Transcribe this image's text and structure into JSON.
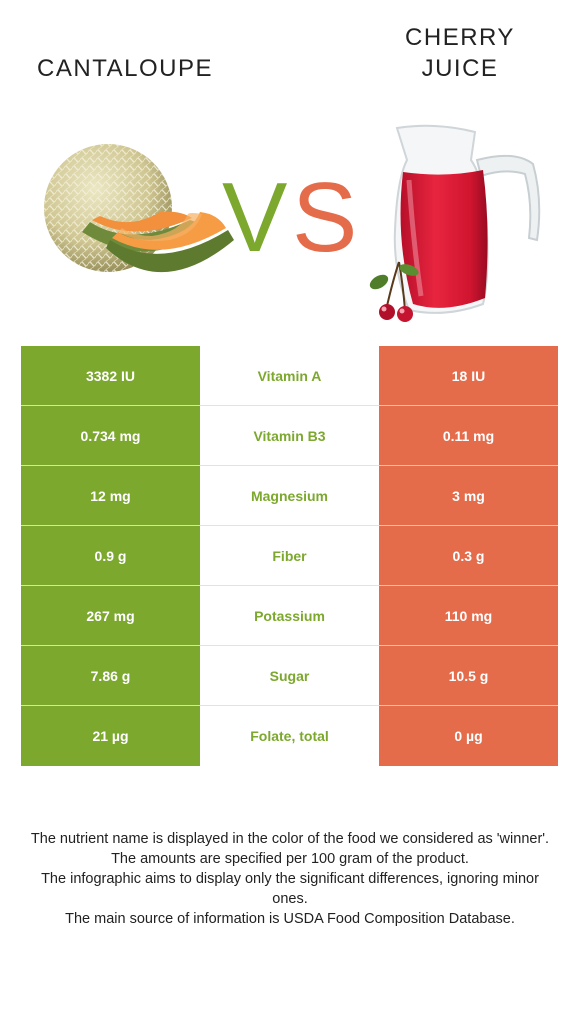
{
  "header": {
    "left_food": "CANTALOUPE",
    "right_food_line1": "CHERRY",
    "right_food_line2": "JUICE",
    "vs_v": "V",
    "vs_s": "S"
  },
  "colors": {
    "left_accent": "#7ca82e",
    "right_accent": "#e56c4b"
  },
  "images": {
    "left": "cantaloupe-image",
    "right": "cherry-juice-pitcher-image"
  },
  "rows": [
    {
      "left": "3382 IU",
      "nutrient": "Vitamin A",
      "right": "18 IU"
    },
    {
      "left": "0.734 mg",
      "nutrient": "Vitamin B3",
      "right": "0.11 mg"
    },
    {
      "left": "12 mg",
      "nutrient": "Magnesium",
      "right": "3 mg"
    },
    {
      "left": "0.9 g",
      "nutrient": "Fiber",
      "right": "0.3 g"
    },
    {
      "left": "267 mg",
      "nutrient": "Potassium",
      "right": "110 mg"
    },
    {
      "left": "7.86 g",
      "nutrient": "Sugar",
      "right": "10.5 g"
    },
    {
      "left": "21 µg",
      "nutrient": "Folate, total",
      "right": "0 µg"
    }
  ],
  "footnote": {
    "line1": "The nutrient name is displayed in the color of the food we considered as 'winner'.",
    "line2": "The amounts are specified per 100 gram of the product.",
    "line3": "The infographic aims to display only the significant differences, ignoring minor ones.",
    "line4": "The main source of information is USDA Food Composition Database."
  }
}
